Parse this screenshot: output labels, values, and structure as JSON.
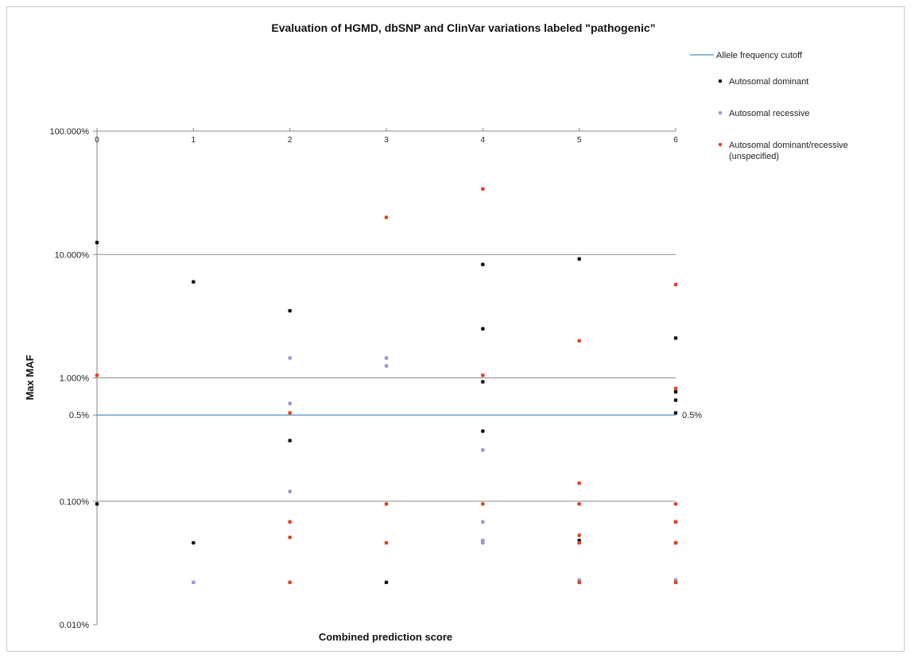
{
  "chart_data": {
    "type": "scatter",
    "title": "Evaluation of HGMD, dbSNP and ClinVar variations labeled \"pathogenic”",
    "xlabel": "Combined prediction score",
    "ylabel": "Max MAF",
    "x_ticks": [
      "0",
      "1",
      "2",
      "3",
      "4",
      "5",
      "6"
    ],
    "y_scale": "log",
    "ylim": [
      0.01,
      100
    ],
    "y_ticks": [
      {
        "value": 100,
        "label": "100.000%"
      },
      {
        "value": 10,
        "label": "10.000%"
      },
      {
        "value": 1,
        "label": "1.000%"
      },
      {
        "value": 0.5,
        "label": "0.5%"
      },
      {
        "value": 0.1,
        "label": "0.100%"
      },
      {
        "value": 0.01,
        "label": "0.010%"
      }
    ],
    "gridlines": [
      100,
      10,
      1,
      0.1
    ],
    "cutoff": {
      "name": "Allele frequency cutoff",
      "value": 0.5,
      "label": "0.5%",
      "color": "#4a90c8"
    },
    "legend_position": "right",
    "series": [
      {
        "name": "Autosomal dominant",
        "color": "#111111",
        "points": [
          [
            0,
            12.5
          ],
          [
            0,
            0.095
          ],
          [
            1,
            6.0
          ],
          [
            1,
            0.046
          ],
          [
            2,
            3.5
          ],
          [
            2,
            0.31
          ],
          [
            3,
            0.022
          ],
          [
            4,
            8.3
          ],
          [
            4,
            2.5
          ],
          [
            4,
            0.93
          ],
          [
            4,
            0.37
          ],
          [
            4,
            0.047
          ],
          [
            5,
            9.2
          ],
          [
            5,
            0.048
          ],
          [
            5,
            0.022
          ],
          [
            6,
            2.1
          ],
          [
            6,
            0.77
          ],
          [
            6,
            0.66
          ],
          [
            6,
            0.52
          ],
          [
            6,
            0.068
          ],
          [
            6,
            0.046
          ],
          [
            6,
            0.022
          ]
        ]
      },
      {
        "name": "Autosomal recessive",
        "color": "#9b93d6",
        "points": [
          [
            1,
            0.022
          ],
          [
            2,
            1.45
          ],
          [
            2,
            0.62
          ],
          [
            2,
            0.12
          ],
          [
            3,
            1.45
          ],
          [
            3,
            1.25
          ],
          [
            4,
            0.26
          ],
          [
            4,
            0.068
          ],
          [
            4,
            0.048
          ],
          [
            4,
            0.046
          ],
          [
            5,
            0.023
          ],
          [
            6,
            0.023
          ]
        ]
      },
      {
        "name": "Autosomal dominant/recessive\n(unspecified)",
        "color": "#e8401e",
        "points": [
          [
            0,
            1.05
          ],
          [
            2,
            0.52
          ],
          [
            2,
            0.068
          ],
          [
            2,
            0.051
          ],
          [
            2,
            0.022
          ],
          [
            3,
            20.0
          ],
          [
            3,
            0.095
          ],
          [
            3,
            0.046
          ],
          [
            4,
            34.0
          ],
          [
            4,
            1.05
          ],
          [
            4,
            0.095
          ],
          [
            5,
            2.0
          ],
          [
            5,
            0.14
          ],
          [
            5,
            0.095
          ],
          [
            5,
            0.053
          ],
          [
            5,
            0.046
          ],
          [
            5,
            0.022
          ],
          [
            6,
            5.7
          ],
          [
            6,
            0.82
          ],
          [
            6,
            0.095
          ],
          [
            6,
            0.068
          ],
          [
            6,
            0.046
          ],
          [
            6,
            0.022
          ]
        ]
      }
    ]
  }
}
